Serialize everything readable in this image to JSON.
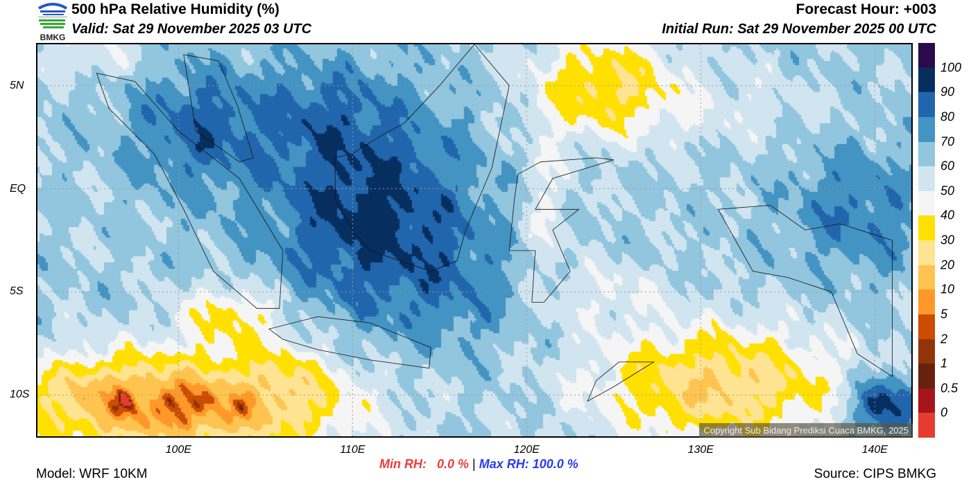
{
  "header": {
    "title": "500 hPa Relative Humidity (%)",
    "valid": "Valid: Sat 29 November 2025 03 UTC",
    "forecast_hour": "Forecast Hour: +003",
    "initial_run": "Initial Run: Sat 29 November 2025 00 UTC",
    "logo_text": "BMKG"
  },
  "map": {
    "lon_range": [
      91.9,
      142.1
    ],
    "lat_range": [
      -12,
      7
    ],
    "lat_ticks": [
      {
        "value": 5,
        "label": "5N"
      },
      {
        "value": 0,
        "label": "EQ"
      },
      {
        "value": -5,
        "label": "5S"
      },
      {
        "value": -10,
        "label": "10S"
      }
    ],
    "lon_ticks": [
      {
        "value": 100,
        "label": "100E"
      },
      {
        "value": 110,
        "label": "110E"
      },
      {
        "value": 120,
        "label": "120E"
      },
      {
        "value": 130,
        "label": "130E"
      },
      {
        "value": 140,
        "label": "140E"
      }
    ],
    "copyright": "Copyright Sub Bidang Prediksi Cuaca BMKG, 2025"
  },
  "colorbar": {
    "labels": [
      "100",
      "90",
      "80",
      "70",
      "60",
      "50",
      "40",
      "30",
      "20",
      "10",
      "5",
      "2",
      "1",
      "0.5",
      "0"
    ],
    "levels": [
      0,
      0.5,
      1,
      2,
      5,
      10,
      20,
      30,
      40,
      50,
      60,
      70,
      80,
      90,
      100
    ],
    "colors_top_to_bottom": [
      "#2a0a4a",
      "#062f60",
      "#2166ac",
      "#4393c3",
      "#92c5de",
      "#d1e5f0",
      "#f5f5f5",
      "#ffe000",
      "#fee391",
      "#fec44f",
      "#fe9929",
      "#cc4c02",
      "#923309",
      "#66220c",
      "#a8141c",
      "#e63c2f"
    ]
  },
  "footer": {
    "model": "Model: WRF 10KM",
    "min_rh": "Min RH:   0.0 %",
    "separator": "|",
    "max_rh": "Max RH: 100.0 %",
    "source": "Source: CIPS BMKG"
  }
}
